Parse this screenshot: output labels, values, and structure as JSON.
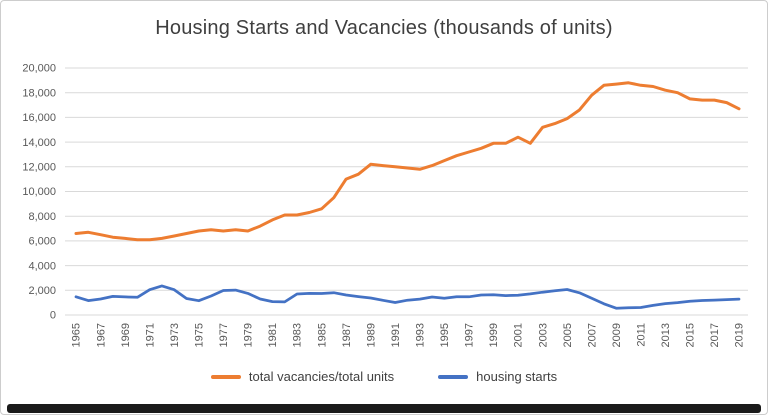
{
  "chart_data": {
    "type": "line",
    "title": "Housing Starts and Vacancies (thousands of units)",
    "xlabel": "",
    "ylabel": "",
    "ylim": [
      0,
      20000
    ],
    "y_tick_step": 2000,
    "y_tick_labels": [
      "0",
      "2,000",
      "4,000",
      "6,000",
      "8,000",
      "10,000",
      "12,000",
      "14,000",
      "16,000",
      "18,000",
      "20,000"
    ],
    "grid": true,
    "gridline_color": "#D9D9D9",
    "legend_position": "bottom",
    "x": [
      1965,
      1966,
      1967,
      1968,
      1969,
      1970,
      1971,
      1972,
      1973,
      1974,
      1975,
      1976,
      1977,
      1978,
      1979,
      1980,
      1981,
      1982,
      1983,
      1984,
      1985,
      1986,
      1987,
      1988,
      1989,
      1990,
      1991,
      1992,
      1993,
      1994,
      1995,
      1996,
      1997,
      1998,
      1999,
      2000,
      2001,
      2002,
      2003,
      2004,
      2005,
      2006,
      2007,
      2008,
      2009,
      2010,
      2011,
      2012,
      2013,
      2014,
      2015,
      2016,
      2017,
      2018,
      2019
    ],
    "x_tick_labels": [
      "1965",
      "1967",
      "1969",
      "1971",
      "1973",
      "1975",
      "1977",
      "1979",
      "1981",
      "1983",
      "1985",
      "1987",
      "1989",
      "1991",
      "1993",
      "1995",
      "1997",
      "1999",
      "2001",
      "2003",
      "2005",
      "2007",
      "2009",
      "2011",
      "2013",
      "2015",
      "2017",
      "2019"
    ],
    "series": [
      {
        "name": "total vacancies/total units",
        "color": "#ED7D31",
        "width": 3,
        "values": [
          6600,
          6700,
          6500,
          6300,
          6200,
          6100,
          6100,
          6200,
          6400,
          6600,
          6800,
          6900,
          6800,
          6900,
          6800,
          7200,
          7700,
          8100,
          8100,
          8300,
          8600,
          9500,
          11000,
          11400,
          12200,
          12100,
          12000,
          11900,
          11800,
          12100,
          12500,
          12900,
          13200,
          13500,
          13900,
          13900,
          14400,
          13900,
          15200,
          15500,
          15900,
          16600,
          17800,
          18600,
          18700,
          18800,
          18600,
          18500,
          18200,
          18000,
          17500,
          17400,
          17400,
          17200,
          16700
        ]
      },
      {
        "name": "housing starts",
        "color": "#4472C4",
        "width": 2.75,
        "values": [
          1473,
          1165,
          1292,
          1508,
          1467,
          1434,
          2052,
          2357,
          2045,
          1338,
          1160,
          1538,
          1987,
          2020,
          1745,
          1292,
          1084,
          1062,
          1703,
          1750,
          1742,
          1805,
          1620,
          1488,
          1376,
          1193,
          1014,
          1200,
          1288,
          1457,
          1354,
          1477,
          1474,
          1617,
          1641,
          1569,
          1603,
          1705,
          1848,
          1956,
          2068,
          1801,
          1355,
          906,
          554,
          587,
          609,
          781,
          925,
          1003,
          1112,
          1174,
          1203,
          1250,
          1290
        ]
      }
    ]
  }
}
